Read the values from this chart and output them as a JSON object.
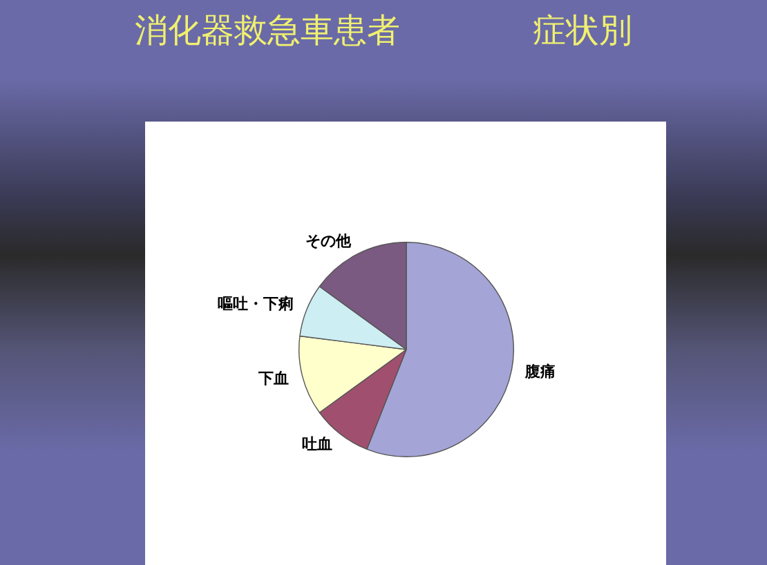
{
  "chart_data": {
    "type": "pie",
    "title": "消化器救急車患者　　　　症状別",
    "categories": [
      "腹痛",
      "吐血",
      "下血",
      "嘔吐・下痢",
      "その他"
    ],
    "values": [
      56,
      9,
      12,
      8,
      15
    ],
    "colors": [
      "#a4a4d6",
      "#a0506e",
      "#ffffcc",
      "#cdeef2",
      "#7a5a80"
    ],
    "legend": false
  }
}
